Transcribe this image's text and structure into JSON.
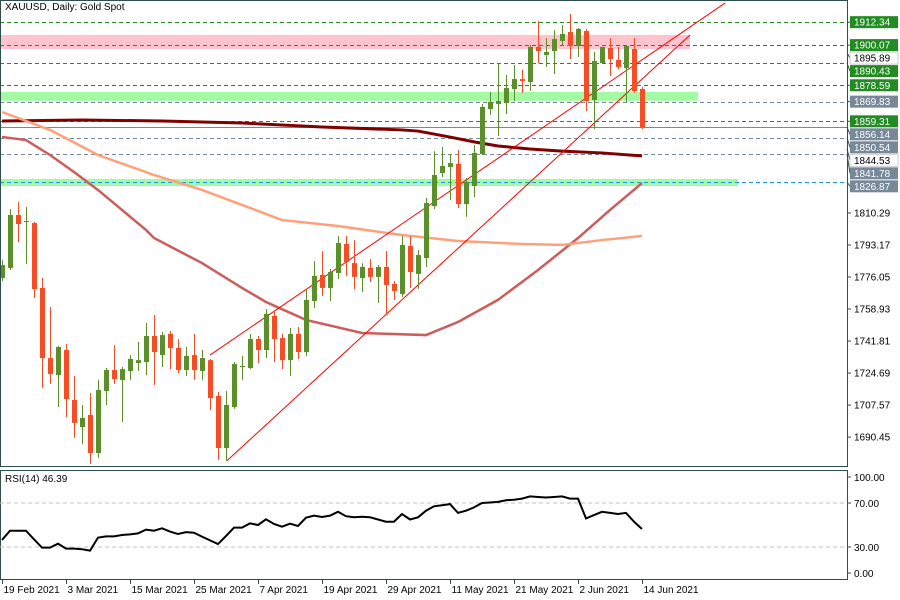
{
  "header": {
    "title": "XAUUSD, Daily:  Gold Spot"
  },
  "rsi_panel": {
    "label": "RSI(14) 46.39"
  },
  "colors": {
    "bull": "#5b8f2a",
    "bear": "#f54e26",
    "frame": "#2f4f4f",
    "ma_long": "#800000",
    "ma_mid": "#cd5c5c",
    "ma_short": "#ffa07a",
    "channel": "#ff0000",
    "label_green": "#228b22",
    "label_gray": "#778899",
    "zone_pink": "#ffc0cb",
    "zone_green": "#98fb98"
  },
  "chart_data": [
    {
      "type": "candlestick",
      "title": "XAUUSD, Daily:  Gold Spot",
      "ylim": [
        1676,
        1917
      ],
      "y_ticks": [
        "1810.29",
        "1793.17",
        "1776.05",
        "1758.93",
        "1741.81",
        "1724.69",
        "1707.57",
        "1690.45"
      ],
      "x_ticks": [
        {
          "bar": 0,
          "label": "19 Feb 2021"
        },
        {
          "bar": 8,
          "label": "3 Mar 2021"
        },
        {
          "bar": 16,
          "label": "15 Mar 2021"
        },
        {
          "bar": 24,
          "label": "25 Mar 2021"
        },
        {
          "bar": 32,
          "label": "7 Apr 2021"
        },
        {
          "bar": 40,
          "label": "19 Apr 2021"
        },
        {
          "bar": 48,
          "label": "29 Apr 2021"
        },
        {
          "bar": 56,
          "label": "11 May 2021"
        },
        {
          "bar": 64,
          "label": "21 May 2021"
        },
        {
          "bar": 72,
          "label": "2 Jun 2021"
        },
        {
          "bar": 80,
          "label": "14 Jun 2021"
        }
      ],
      "ohlc": [
        [
          1775.5,
          1785.1,
          1773.9,
          1782.5
        ],
        [
          1780.9,
          1812.4,
          1779.8,
          1809.2
        ],
        [
          1809.2,
          1816.2,
          1794.8,
          1804.4
        ],
        [
          1805.5,
          1813.5,
          1783.0,
          1806.0
        ],
        [
          1804.9,
          1805.5,
          1764.8,
          1769.6
        ],
        [
          1770.2,
          1775.5,
          1716.7,
          1732.7
        ],
        [
          1732.7,
          1760.0,
          1718.8,
          1724.2
        ],
        [
          1723.6,
          1739.2,
          1706.5,
          1738.6
        ],
        [
          1737.0,
          1740.2,
          1701.2,
          1710.8
        ],
        [
          1710.3,
          1723.1,
          1690.0,
          1698.0
        ],
        [
          1695.8,
          1707.6,
          1686.7,
          1700.7
        ],
        [
          1702.3,
          1714.0,
          1676.0,
          1681.9
        ],
        [
          1681.9,
          1721.0,
          1679.3,
          1715.6
        ],
        [
          1715.1,
          1727.4,
          1707.6,
          1726.3
        ],
        [
          1726.3,
          1739.7,
          1718.8,
          1721.5
        ],
        [
          1721.0,
          1727.9,
          1698.5,
          1726.8
        ],
        [
          1725.8,
          1734.3,
          1721.0,
          1732.2
        ],
        [
          1730.0,
          1741.3,
          1725.8,
          1731.6
        ],
        [
          1730.6,
          1751.5,
          1723.6,
          1744.5
        ],
        [
          1744.5,
          1755.7,
          1718.3,
          1735.9
        ],
        [
          1734.3,
          1746.6,
          1727.9,
          1745.0
        ],
        [
          1745.6,
          1747.2,
          1726.8,
          1738.1
        ],
        [
          1738.1,
          1742.9,
          1724.7,
          1726.3
        ],
        [
          1726.3,
          1738.6,
          1723.1,
          1733.8
        ],
        [
          1734.3,
          1745.6,
          1721.0,
          1726.3
        ],
        [
          1725.8,
          1737.0,
          1721.0,
          1732.7
        ],
        [
          1731.6,
          1732.2,
          1704.9,
          1711.3
        ],
        [
          1712.4,
          1714.6,
          1678.2,
          1684.6
        ],
        [
          1684.6,
          1715.1,
          1677.7,
          1707.6
        ],
        [
          1706.5,
          1730.6,
          1705.5,
          1729.5
        ],
        [
          1727.9,
          1733.8,
          1721.0,
          1728.5
        ],
        [
          1727.4,
          1745.6,
          1726.8,
          1742.9
        ],
        [
          1742.9,
          1744.5,
          1730.0,
          1737.0
        ],
        [
          1737.0,
          1758.9,
          1732.7,
          1756.3
        ],
        [
          1755.2,
          1757.3,
          1730.6,
          1742.9
        ],
        [
          1743.4,
          1745.6,
          1726.8,
          1731.6
        ],
        [
          1731.6,
          1748.8,
          1723.1,
          1745.6
        ],
        [
          1745.6,
          1749.3,
          1732.2,
          1735.9
        ],
        [
          1735.9,
          1769.6,
          1733.8,
          1763.8
        ],
        [
          1763.2,
          1784.6,
          1759.5,
          1776.6
        ],
        [
          1777.1,
          1789.9,
          1765.9,
          1770.2
        ],
        [
          1770.2,
          1780.3,
          1763.2,
          1778.7
        ],
        [
          1778.2,
          1798.0,
          1775.0,
          1794.2
        ],
        [
          1793.7,
          1798.0,
          1776.6,
          1784.1
        ],
        [
          1783.5,
          1795.8,
          1769.6,
          1776.1
        ],
        [
          1775.5,
          1783.5,
          1768.0,
          1781.4
        ],
        [
          1780.9,
          1785.7,
          1773.4,
          1776.1
        ],
        [
          1776.1,
          1782.5,
          1762.2,
          1781.4
        ],
        [
          1781.4,
          1789.9,
          1755.7,
          1771.8
        ],
        [
          1772.3,
          1773.9,
          1763.8,
          1768.6
        ],
        [
          1767.0,
          1798.0,
          1765.4,
          1793.2
        ],
        [
          1792.6,
          1798.0,
          1770.2,
          1778.7
        ],
        [
          1777.7,
          1790.5,
          1769.6,
          1787.8
        ],
        [
          1786.2,
          1818.3,
          1781.4,
          1815.6
        ],
        [
          1814.0,
          1843.4,
          1812.4,
          1830.6
        ],
        [
          1831.7,
          1845.6,
          1829.5,
          1835.4
        ],
        [
          1834.9,
          1841.8,
          1817.2,
          1837.0
        ],
        [
          1836.5,
          1844.0,
          1812.9,
          1815.1
        ],
        [
          1815.1,
          1829.0,
          1808.2,
          1826.9
        ],
        [
          1824.7,
          1846.6,
          1818.8,
          1842.4
        ],
        [
          1841.8,
          1868.6,
          1841.3,
          1867.0
        ],
        [
          1865.9,
          1875.0,
          1862.7,
          1869.7
        ],
        [
          1868.6,
          1890.0,
          1851.5,
          1870.2
        ],
        [
          1869.1,
          1884.1,
          1863.2,
          1877.1
        ],
        [
          1876.6,
          1889.4,
          1870.2,
          1881.9
        ],
        [
          1881.9,
          1886.8,
          1874.5,
          1880.9
        ],
        [
          1880.3,
          1900.1,
          1875.5,
          1899.1
        ],
        [
          1899.1,
          1913.0,
          1890.5,
          1896.9
        ],
        [
          1894.8,
          1903.9,
          1888.4,
          1896.4
        ],
        [
          1896.9,
          1908.1,
          1884.6,
          1903.3
        ],
        [
          1902.3,
          1910.8,
          1900.1,
          1906.0
        ],
        [
          1907.1,
          1916.7,
          1892.6,
          1899.6
        ],
        [
          1899.6,
          1909.2,
          1893.7,
          1908.7
        ],
        [
          1907.6,
          1908.7,
          1864.8,
          1870.2
        ],
        [
          1870.7,
          1896.4,
          1855.2,
          1891.6
        ],
        [
          1890.5,
          1899.1,
          1890.0,
          1899.1
        ],
        [
          1898.5,
          1903.9,
          1883.5,
          1892.6
        ],
        [
          1892.1,
          1899.1,
          1887.3,
          1888.4
        ],
        [
          1887.8,
          1900.1,
          1869.1,
          1899.6
        ],
        [
          1898.0,
          1903.9,
          1874.5,
          1875.5
        ],
        [
          1876.6,
          1877.7,
          1855.2,
          1856.14
        ]
      ],
      "moving_averages": [
        {
          "color_key": "ma_long",
          "points": [
            [
              0,
              1859.5
            ],
            [
              10,
              1860.0
            ],
            [
              20,
              1859.5
            ],
            [
              30,
              1858.4
            ],
            [
              40,
              1856.3
            ],
            [
              50,
              1854.7
            ],
            [
              52,
              1854.1
            ],
            [
              56,
              1850.9
            ],
            [
              59,
              1848.3
            ],
            [
              62,
              1846.1
            ],
            [
              66,
              1844.5
            ],
            [
              70,
              1843.4
            ],
            [
              75,
              1842.4
            ],
            [
              80,
              1840.8
            ]
          ]
        },
        {
          "color_key": "ma_mid",
          "points": [
            [
              0,
              1850.9
            ],
            [
              3,
              1849.3
            ],
            [
              6,
              1841.3
            ],
            [
              9,
              1832.2
            ],
            [
              12,
              1822.6
            ],
            [
              15,
              1811.9
            ],
            [
              18,
              1801.2
            ],
            [
              19,
              1796.9
            ],
            [
              25,
              1783.5
            ],
            [
              30,
              1770.2
            ],
            [
              33,
              1762.7
            ],
            [
              38,
              1753.1
            ],
            [
              45,
              1746.1
            ],
            [
              53,
              1745.0
            ],
            [
              57,
              1752.0
            ],
            [
              62,
              1763.8
            ],
            [
              67,
              1779.8
            ],
            [
              72,
              1796.9
            ],
            [
              76,
              1811.9
            ],
            [
              80,
              1826.3
            ]
          ]
        },
        {
          "color_key": "ma_short",
          "points": [
            [
              0,
              1864.3
            ],
            [
              6,
              1854.7
            ],
            [
              12,
              1841.3
            ],
            [
              19,
              1830.6
            ],
            [
              25,
              1822.6
            ],
            [
              30,
              1814.6
            ],
            [
              35,
              1806.5
            ],
            [
              42,
              1803.3
            ],
            [
              50,
              1798.5
            ],
            [
              57,
              1795.3
            ],
            [
              65,
              1793.7
            ],
            [
              70,
              1793.2
            ],
            [
              75,
              1795.8
            ],
            [
              80,
              1798.0
            ]
          ]
        }
      ],
      "channel_lines": [
        [
          [
            26,
            1734.3
          ],
          [
            90.4,
            1922.6
          ]
        ],
        [
          [
            28.1,
            1677.7
          ],
          [
            86,
            1905.5
          ]
        ]
      ],
      "zones": [
        {
          "color_key": "zone_pink",
          "from": 1898.0,
          "to": 1905.5,
          "end_bar": 86
        },
        {
          "color_key": "zone_green",
          "from": 1870.3,
          "to": 1875.0,
          "end_bar": 87
        },
        {
          "color_key": "zone_green",
          "from": 1824.7,
          "to": 1828.5,
          "end_bar": 92
        }
      ],
      "levels": [
        {
          "price": 1912.34,
          "label": "1912.34",
          "style": "green"
        },
        {
          "price": 1900.07,
          "label": "1900.07",
          "style": "green"
        },
        {
          "price": 1895.89,
          "label": "1895.89",
          "style": "plain"
        },
        {
          "price": 1890.43,
          "label": "1890.43",
          "style": "green"
        },
        {
          "price": 1878.59,
          "label": "1878.59",
          "style": "green"
        },
        {
          "price": 1869.83,
          "label": "1869.83",
          "style": "gray"
        },
        {
          "price": 1859.31,
          "label": "1859.31",
          "style": "green"
        },
        {
          "price": 1856.14,
          "label": "1856.14",
          "style": "current"
        },
        {
          "price": 1850.54,
          "label": "1850.54",
          "style": "gray"
        },
        {
          "price": 1844.53,
          "label": "1844.53",
          "style": "plain"
        },
        {
          "price": 1841.78,
          "label": "1841.78",
          "style": "gray"
        },
        {
          "price": 1826.87,
          "label": "1826.87",
          "style": "blue"
        }
      ]
    },
    {
      "type": "line",
      "title": "RSI(14) 46.39",
      "ylim": [
        0,
        100
      ],
      "y_ticks": [
        "100.00",
        "70.00",
        "30.00",
        "0.00"
      ],
      "levels": [
        70,
        30
      ],
      "values": [
        36.4,
        44.8,
        44.8,
        44.8,
        37,
        29.4,
        29.4,
        33,
        28.5,
        28.5,
        28,
        26.7,
        38.5,
        39.7,
        39.7,
        40.9,
        41.5,
        42.4,
        45.8,
        44.8,
        47,
        44,
        41.8,
        43.5,
        43,
        39.4,
        36,
        32.7,
        40,
        47.6,
        47.6,
        51.5,
        50,
        55.2,
        50.9,
        48.5,
        51.2,
        49.1,
        56.7,
        58.5,
        57.3,
        58.5,
        62,
        58,
        57,
        57.5,
        57,
        55,
        53,
        53,
        60,
        55,
        57,
        63,
        67,
        68,
        69,
        61,
        63,
        66,
        70,
        70.5,
        71,
        72.5,
        73,
        74,
        76,
        75.5,
        75,
        75.5,
        76,
        74,
        74,
        56,
        59,
        62,
        61,
        60,
        61,
        53,
        46.39
      ]
    }
  ]
}
